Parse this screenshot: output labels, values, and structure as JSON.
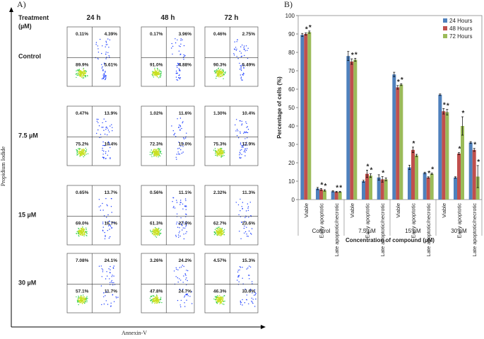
{
  "panel_a": {
    "label": "A)",
    "treatment_label": [
      "Treatment",
      "(µM)"
    ],
    "columns": [
      "24 h",
      "48 h",
      "72 h"
    ],
    "y_axis_label": "Propidium Iodide",
    "x_axis_label": "Annexin-V",
    "rows": [
      {
        "label": "Control",
        "plots": [
          {
            "ul": "0.11%",
            "ur": "4.39%",
            "ll": "89.9%",
            "lr": "5.61%"
          },
          {
            "ul": "0.17%",
            "ur": "3.96%",
            "ll": "91.0%",
            "lr": "4.88%"
          },
          {
            "ul": "0.46%",
            "ur": "2.75%",
            "ll": "90.3%",
            "lr": "5.49%"
          }
        ]
      },
      {
        "label": "7.5 µM",
        "plots": [
          {
            "ul": "0.47%",
            "ur": "13.9%",
            "ll": "75.2%",
            "lr": "10.4%"
          },
          {
            "ul": "1.02%",
            "ur": "11.6%",
            "ll": "72.3%",
            "lr": "15.0%"
          },
          {
            "ul": "1.30%",
            "ur": "10.4%",
            "ll": "75.3%",
            "lr": "12.9%"
          }
        ]
      },
      {
        "label": "15 µM",
        "plots": [
          {
            "ul": "0.65%",
            "ur": "13.7%",
            "ll": "69.0%",
            "lr": "16.7%"
          },
          {
            "ul": "0.56%",
            "ur": "11.1%",
            "ll": "61.3%",
            "lr": "27.0%"
          },
          {
            "ul": "2.32%",
            "ur": "11.3%",
            "ll": "62.7%",
            "lr": "23.6%"
          }
        ]
      },
      {
        "label": "30 µM",
        "plots": [
          {
            "ul": "7.08%",
            "ur": "24.1%",
            "ll": "57.1%",
            "lr": "11.7%"
          },
          {
            "ul": "3.26%",
            "ur": "24.2%",
            "ll": "47.8%",
            "lr": "24.7%"
          },
          {
            "ul": "4.57%",
            "ur": "15.3%",
            "ll": "46.3%",
            "lr": "33.6%"
          }
        ]
      }
    ]
  },
  "chart_data": {
    "type": "bar",
    "panel_label": "B)",
    "y_label": "Percentage of cells (%)",
    "x_label": "Concentration of compound (µM)",
    "categories": [
      "Viable",
      "Early apoptotic",
      "Late apoptotic/necrotic",
      "Viable",
      "Early apoptotic",
      "Late apoptotic/necrotic",
      "Viable",
      "Early apoptotic",
      "Late apoptotic/necrotic",
      "Viable",
      "Early apoptotic",
      "Late apoptotic/necrotic"
    ],
    "groups": [
      "Control",
      "7.5 µM",
      "15 µM",
      "30 µM"
    ],
    "ylim": [
      0,
      100
    ],
    "yticks": [
      0,
      10,
      20,
      30,
      40,
      50,
      60,
      70,
      80,
      90,
      100
    ],
    "legend": "top-right",
    "series": [
      {
        "name": "24 Hours",
        "color": "#4f81bd",
        "values": [
          89.5,
          6,
          4.5,
          78,
          10,
          12,
          68,
          17.5,
          14.5,
          57,
          12,
          31
        ],
        "errors": [
          0.8,
          0.6,
          0.3,
          2.5,
          0.5,
          1.5,
          1.2,
          1.2,
          0.4,
          0.4,
          0.4,
          0.5
        ]
      },
      {
        "name": "48 Hours",
        "color": "#c0504d",
        "values": [
          90,
          5.5,
          4.2,
          75,
          14,
          11,
          61,
          27,
          12,
          48,
          25,
          27
        ],
        "errors": [
          0.6,
          0.5,
          0.3,
          1.5,
          2,
          1.5,
          1,
          1.5,
          0.4,
          1.5,
          0.5,
          0.8
        ],
        "significance": [
          "*",
          "*",
          "*",
          "*",
          "*",
          "*",
          "*",
          "*",
          "*",
          "*",
          "*",
          "*"
        ]
      },
      {
        "name": "72 Hours",
        "color": "#9bbb59",
        "values": [
          91,
          5,
          4.2,
          76,
          13,
          11,
          62.5,
          24,
          14,
          47.5,
          40,
          12.5
        ],
        "errors": [
          0.6,
          0.4,
          0.3,
          0.8,
          1,
          0.8,
          0.5,
          0.6,
          0.4,
          1.5,
          5,
          6
        ],
        "significance": [
          "*",
          "*",
          "*",
          "*",
          "*",
          null,
          "*",
          null,
          "*",
          "*",
          "*",
          "*"
        ]
      }
    ]
  }
}
